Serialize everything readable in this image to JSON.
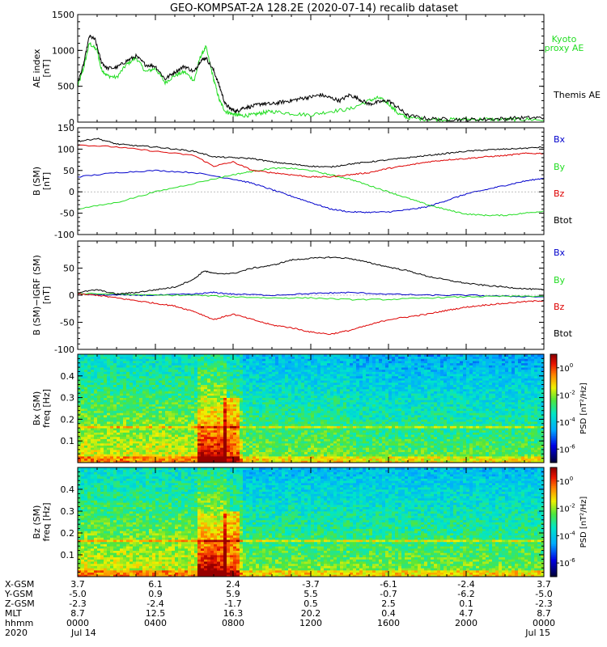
{
  "chart_data": [
    {
      "type": "line",
      "title": "GEO-KOMPSAT-2A 128.2E (2020-07-14) recalib dataset",
      "ylabel_lines": [
        "AE index",
        "[nT]"
      ],
      "ylim": [
        0,
        1500
      ],
      "yticks": [
        "0",
        "500",
        "1000",
        "1500"
      ],
      "yticks_values": [
        0,
        500,
        1000,
        1500
      ],
      "xlim_hours": [
        0,
        24
      ],
      "series": [
        {
          "name": "Kyoto proxy AE",
          "color": "#22dd22",
          "x": [
            0,
            0.3,
            0.6,
            1.0,
            1.2,
            1.5,
            2,
            2.5,
            3,
            3.5,
            4,
            4.5,
            5,
            5.5,
            6,
            6.3,
            6.6,
            7,
            7.3,
            7.6,
            7.9,
            8.2,
            8.5,
            9,
            9.5,
            10,
            11,
            12,
            13,
            14,
            15,
            15.5,
            16,
            16.5,
            17,
            18,
            19,
            20,
            21,
            22,
            23,
            24
          ],
          "y": [
            500,
            750,
            1100,
            1000,
            750,
            650,
            620,
            800,
            900,
            700,
            750,
            550,
            650,
            700,
            580,
            900,
            1050,
            600,
            300,
            150,
            120,
            100,
            90,
            100,
            130,
            150,
            120,
            100,
            150,
            180,
            300,
            340,
            260,
            120,
            60,
            40,
            35,
            40,
            40,
            35,
            40,
            30
          ]
        },
        {
          "name": "Themis AE",
          "color": "#000000",
          "x": [
            0,
            0.3,
            0.6,
            0.9,
            1.2,
            1.5,
            2,
            2.5,
            3,
            3.5,
            4,
            4.5,
            5,
            5.5,
            6,
            6.3,
            6.6,
            7,
            7.3,
            7.6,
            7.9,
            8.2,
            8.5,
            9,
            9.5,
            10,
            10.5,
            11,
            11.5,
            12,
            12.5,
            13,
            13.5,
            14,
            14.5,
            15,
            15.5,
            16,
            16.5,
            17,
            18,
            19,
            20,
            21,
            22,
            23,
            24
          ],
          "y": [
            550,
            800,
            1200,
            1150,
            850,
            750,
            760,
            850,
            920,
            800,
            780,
            600,
            700,
            780,
            700,
            850,
            900,
            720,
            500,
            250,
            180,
            150,
            200,
            220,
            260,
            250,
            280,
            300,
            330,
            350,
            380,
            340,
            300,
            380,
            320,
            250,
            280,
            300,
            200,
            90,
            50,
            40,
            35,
            40,
            50,
            60,
            60
          ]
        }
      ]
    },
    {
      "type": "line",
      "ylabel_lines": [
        "B (SM)",
        "[nT]"
      ],
      "ylim": [
        -100,
        150
      ],
      "yticks": [
        "-100",
        "-50",
        "0",
        "50",
        "100",
        "150"
      ],
      "yticks_values": [
        -100,
        -50,
        0,
        50,
        100,
        150
      ],
      "xlim_hours": [
        0,
        24
      ],
      "series": [
        {
          "name": "Bx",
          "color": "#0000cc",
          "x": [
            0,
            2,
            4,
            6,
            8,
            9,
            10,
            11,
            12,
            13,
            14,
            15,
            16,
            17,
            18,
            19,
            20,
            21,
            22,
            23,
            24
          ],
          "y": [
            35,
            45,
            50,
            45,
            30,
            20,
            5,
            -10,
            -25,
            -40,
            -47,
            -48,
            -47,
            -42,
            -35,
            -20,
            -5,
            5,
            15,
            25,
            32
          ]
        },
        {
          "name": "By",
          "color": "#22dd22",
          "x": [
            0,
            2,
            4,
            6,
            8,
            9,
            10,
            11,
            12,
            13,
            14,
            15,
            16,
            17,
            18,
            19,
            20,
            21,
            22,
            23,
            24
          ],
          "y": [
            -40,
            -25,
            0,
            20,
            40,
            48,
            55,
            55,
            50,
            40,
            30,
            15,
            0,
            -15,
            -30,
            -42,
            -52,
            -55,
            -55,
            -50,
            -45
          ]
        },
        {
          "name": "Bz",
          "color": "#dd0000",
          "x": [
            0,
            2,
            4,
            6,
            7,
            8,
            9,
            10,
            11,
            12,
            13,
            14,
            15,
            16,
            17,
            18,
            19,
            20,
            21,
            22,
            23,
            24
          ],
          "y": [
            110,
            105,
            95,
            85,
            60,
            70,
            50,
            45,
            40,
            35,
            35,
            40,
            45,
            55,
            62,
            70,
            75,
            78,
            82,
            85,
            90,
            90
          ]
        },
        {
          "name": "Btot",
          "color": "#000000",
          "x": [
            0,
            1,
            2,
            3,
            4,
            5,
            6,
            7,
            8,
            9,
            10,
            11,
            12,
            13,
            14,
            15,
            16,
            17,
            18,
            19,
            20,
            21,
            22,
            23,
            24
          ],
          "y": [
            118,
            125,
            112,
            108,
            105,
            100,
            95,
            82,
            80,
            78,
            70,
            65,
            60,
            58,
            65,
            70,
            75,
            80,
            85,
            90,
            95,
            98,
            100,
            102,
            105
          ]
        }
      ]
    },
    {
      "type": "line",
      "ylabel_lines": [
        "B (SM)−IGRF (SM)",
        "[nT]"
      ],
      "ylim": [
        -100,
        100
      ],
      "yticks": [
        "-100",
        "-50",
        "0",
        "50"
      ],
      "yticks_values": [
        -100,
        -50,
        0,
        50
      ],
      "xlim_hours": [
        0,
        24
      ],
      "series": [
        {
          "name": "Bx",
          "color": "#0000cc",
          "x": [
            0,
            2,
            4,
            6,
            7,
            8,
            10,
            12,
            13,
            14,
            16,
            18,
            20,
            22,
            24
          ],
          "y": [
            2,
            0,
            0,
            2,
            5,
            2,
            0,
            3,
            4,
            5,
            2,
            0,
            0,
            -2,
            -3
          ]
        },
        {
          "name": "By",
          "color": "#22dd22",
          "x": [
            0,
            2,
            4,
            6,
            8,
            10,
            12,
            14,
            16,
            18,
            20,
            22,
            24
          ],
          "y": [
            3,
            2,
            0,
            0,
            -3,
            -5,
            -5,
            -8,
            -8,
            -5,
            -3,
            -2,
            -2
          ]
        },
        {
          "name": "Bz",
          "color": "#dd0000",
          "x": [
            0,
            1,
            2,
            3,
            4,
            5,
            6,
            7,
            8,
            9,
            10,
            11,
            12,
            13,
            14,
            15,
            16,
            17,
            18,
            19,
            20,
            21,
            22,
            23,
            24
          ],
          "y": [
            2,
            0,
            -5,
            -10,
            -15,
            -20,
            -30,
            -45,
            -35,
            -45,
            -55,
            -60,
            -68,
            -72,
            -65,
            -55,
            -45,
            -40,
            -35,
            -28,
            -22,
            -18,
            -15,
            -12,
            -10
          ]
        },
        {
          "name": "Btot",
          "color": "#000000",
          "x": [
            0,
            1,
            2,
            3,
            4,
            5,
            6,
            6.5,
            7,
            8,
            9,
            10,
            11,
            12,
            13,
            14,
            15,
            16,
            17,
            18,
            19,
            20,
            21,
            22,
            23,
            24
          ],
          "y": [
            5,
            10,
            2,
            5,
            10,
            15,
            30,
            45,
            40,
            40,
            50,
            55,
            65,
            68,
            70,
            68,
            60,
            52,
            45,
            35,
            28,
            22,
            18,
            15,
            12,
            10
          ]
        }
      ]
    },
    {
      "type": "heatmap",
      "ylabel_lines": [
        "Bx (SM)",
        "freq [Hz]"
      ],
      "ylim": [
        0,
        0.5
      ],
      "yticks": [
        "0.1",
        "0.2",
        "0.3",
        "0.4"
      ],
      "yticks_values": [
        0.1,
        0.2,
        0.3,
        0.4
      ],
      "colorbar_label": "PSD [nT²/Hz]",
      "colorbar_ticks": [
        "10",
        "10",
        "10",
        "10"
      ],
      "colorbar_exponents": [
        "0",
        "-2",
        "-4",
        "-6"
      ],
      "colorbar_range_log": [
        -7,
        1
      ]
    },
    {
      "type": "heatmap",
      "ylabel_lines": [
        "Bz (SM)",
        "freq [Hz]"
      ],
      "ylim": [
        0,
        0.5
      ],
      "yticks": [
        "0.1",
        "0.2",
        "0.3",
        "0.4"
      ],
      "yticks_values": [
        0.1,
        0.2,
        0.3,
        0.4
      ],
      "colorbar_label": "PSD [nT²/Hz]",
      "colorbar_ticks": [
        "10",
        "10",
        "10",
        "10"
      ],
      "colorbar_exponents": [
        "0",
        "-2",
        "-4",
        "-6"
      ],
      "colorbar_range_log": [
        -7,
        1
      ]
    }
  ],
  "legends": {
    "ae": [
      "Kyoto",
      "proxy AE",
      "Themis AE"
    ],
    "b_sm": [
      "Bx",
      "By",
      "Bz",
      "Btot"
    ],
    "b_diff": [
      "Bx",
      "By",
      "Bz",
      "Btot"
    ]
  },
  "colors": {
    "bx": "#0000cc",
    "by": "#22dd22",
    "bz": "#dd0000",
    "btot": "#000000",
    "kyoto": "#22dd22"
  },
  "ephemeris": {
    "row_labels": [
      "X-GSM",
      "Y-GSM",
      "Z-GSM",
      "MLT",
      "hhmm",
      "2020"
    ],
    "columns": [
      [
        "3.7",
        "-5.0",
        "-2.3",
        "8.7",
        "0000",
        "Jul 14"
      ],
      [
        "6.1",
        "0.9",
        "-2.4",
        "12.5",
        "0400",
        ""
      ],
      [
        "2.4",
        "5.9",
        "-1.7",
        "16.3",
        "0800",
        ""
      ],
      [
        "-3.7",
        "5.5",
        "0.5",
        "20.2",
        "1200",
        ""
      ],
      [
        "-6.1",
        "-0.7",
        "2.5",
        "0.4",
        "1600",
        ""
      ],
      [
        "-2.4",
        "-6.2",
        "0.1",
        "4.7",
        "2000",
        ""
      ],
      [
        "3.7",
        "-5.0",
        "-2.3",
        "8.7",
        "0000",
        "Jul 15"
      ]
    ],
    "column_hours": [
      0,
      4,
      8,
      12,
      16,
      20,
      24
    ]
  }
}
